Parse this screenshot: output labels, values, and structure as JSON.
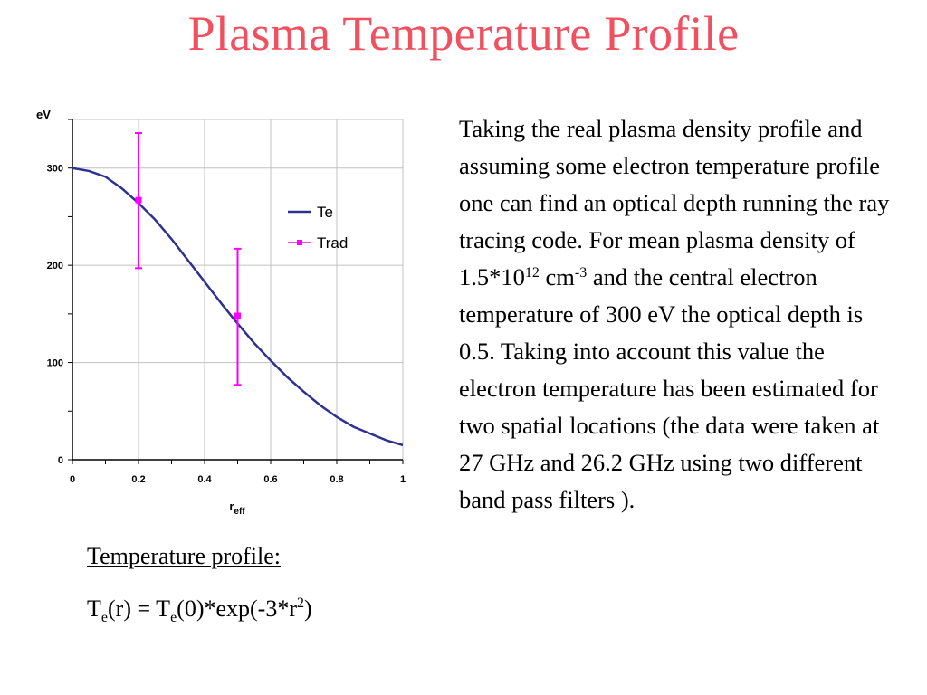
{
  "title": "Plasma Temperature Profile",
  "description": {
    "part1": "Taking the real plasma density profile and assuming some electron temperature profile one can find an optical depth running the ray tracing code. For mean plasma density of 1.5*10",
    "exp1": "12",
    "part2": " cm",
    "exp2": "-3",
    "part3": " and the central electron temperature of 300 eV the optical depth is 0.5. Taking into account this value the electron temperature has been estimated for two spatial locations (the data were taken at 27 GHz and 26.2 GHz using two different band pass filters )."
  },
  "formula": {
    "heading": "Temperature profile:",
    "t1": "T",
    "s1": "e",
    "m1": "(r) = T",
    "s2": "e",
    "m2": "(0)*exp(-3*r",
    "sup": "2",
    "end": ")"
  },
  "colors": {
    "title": "#f05060",
    "te_line": "#2e3192",
    "trad_marker": "#ff00ff",
    "grid": "#c0c0c0"
  },
  "chart_data": {
    "type": "line",
    "ylabel": "eV",
    "xlabel_main": "r",
    "xlabel_sub": "eff",
    "xlim": [
      0,
      1
    ],
    "ylim": [
      0,
      350
    ],
    "xticks": [
      0,
      0.2,
      0.4,
      0.6,
      0.8,
      1
    ],
    "xtick_labels": [
      "0",
      "0.2",
      "0.4",
      "0.6",
      "0.8",
      "1"
    ],
    "yticks": [
      0,
      100,
      200,
      300
    ],
    "ytick_labels": [
      "0",
      "100",
      "200",
      "300"
    ],
    "grid": true,
    "legend_position": "top-right",
    "series": [
      {
        "name": "Te",
        "kind": "line",
        "x": [
          0,
          0.05,
          0.1,
          0.15,
          0.2,
          0.25,
          0.3,
          0.35,
          0.4,
          0.45,
          0.5,
          0.55,
          0.6,
          0.65,
          0.7,
          0.75,
          0.8,
          0.85,
          0.9,
          0.95,
          1.0
        ],
        "y": [
          300,
          297,
          291,
          279,
          264,
          247,
          227,
          205,
          183,
          161,
          140,
          120,
          102,
          85,
          70,
          56,
          44,
          34,
          27,
          20,
          15
        ]
      },
      {
        "name": "Trad",
        "kind": "points_with_errorbars",
        "x": [
          0.2,
          0.5
        ],
        "y": [
          267,
          148
        ],
        "y_low": [
          197,
          77
        ],
        "y_high": [
          336,
          217
        ]
      }
    ]
  }
}
